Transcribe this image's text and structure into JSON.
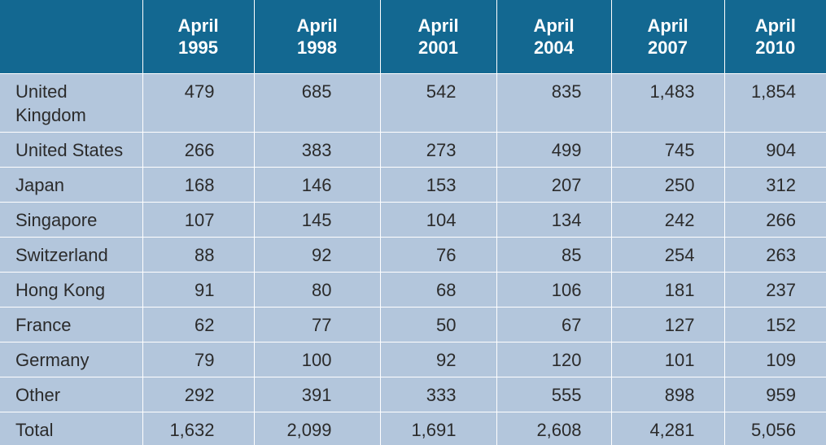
{
  "table": {
    "corner": "",
    "headers": [
      {
        "line1": "April",
        "line2": "1995"
      },
      {
        "line1": "April",
        "line2": "1998"
      },
      {
        "line1": "April",
        "line2": "2001"
      },
      {
        "line1": "April",
        "line2": "2004"
      },
      {
        "line1": "April",
        "line2": "2007"
      },
      {
        "line1": "April",
        "line2": "2010"
      }
    ],
    "rows": [
      {
        "country_line1": "United",
        "country_line2": "Kingdom",
        "values": [
          "479",
          "685",
          "542",
          "835",
          "1,483",
          "1,854"
        ]
      },
      {
        "country_line1": "United States",
        "country_line2": "",
        "values": [
          "266",
          "383",
          "273",
          "499",
          "745",
          "904"
        ]
      },
      {
        "country_line1": "Japan",
        "country_line2": "",
        "values": [
          "168",
          "146",
          "153",
          "207",
          "250",
          "312"
        ]
      },
      {
        "country_line1": "Singapore",
        "country_line2": "",
        "values": [
          "107",
          "145",
          "104",
          "134",
          "242",
          "266"
        ]
      },
      {
        "country_line1": "Switzerland",
        "country_line2": "",
        "values": [
          "88",
          "92",
          "76",
          "85",
          "254",
          "263"
        ]
      },
      {
        "country_line1": "Hong Kong",
        "country_line2": "",
        "values": [
          "91",
          "80",
          "68",
          "106",
          "181",
          "237"
        ]
      },
      {
        "country_line1": "France",
        "country_line2": "",
        "values": [
          "62",
          "77",
          "50",
          "67",
          "127",
          "152"
        ]
      },
      {
        "country_line1": "Germany",
        "country_line2": "",
        "values": [
          "79",
          "100",
          "92",
          "120",
          "101",
          "109"
        ]
      },
      {
        "country_line1": "Other",
        "country_line2": "",
        "values": [
          "292",
          "391",
          "333",
          "555",
          "898",
          "959"
        ]
      },
      {
        "country_line1": "Total",
        "country_line2": "",
        "values": [
          "1,632",
          "2,099",
          "1,691",
          "2,608",
          "4,281",
          "5,056"
        ]
      }
    ]
  },
  "colors": {
    "header_bg": "#136891",
    "body_bg": "#b3c6dc",
    "grid_lines": "#ffffff",
    "body_text": "#2b2b2b",
    "header_text": "#ffffff"
  }
}
